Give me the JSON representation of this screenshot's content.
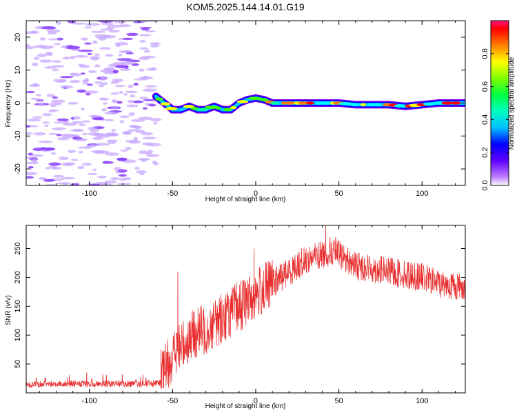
{
  "title": "KOM5.2025.144.14.01.G19",
  "chart_data": [
    {
      "type": "heatmap",
      "name": "spectrogram",
      "xlabel": "Height of straight line (km)",
      "ylabel": "Frequency (Hz)",
      "xlim": [
        -138,
        126
      ],
      "ylim": [
        -25,
        25
      ],
      "xticks": [
        -100,
        -50,
        0,
        50,
        100
      ],
      "yticks": [
        -20,
        -10,
        0,
        10,
        20
      ],
      "track": {
        "x": [
          -60,
          -55,
          -50,
          -45,
          -40,
          -35,
          -30,
          -25,
          -20,
          -15,
          -10,
          -5,
          0,
          5,
          10,
          15,
          20,
          30,
          40,
          50,
          60,
          70,
          80,
          90,
          100,
          110,
          120,
          126
        ],
        "freq": [
          2,
          0,
          -2,
          -2,
          -1,
          -2,
          -2,
          -1,
          -2,
          -2,
          0,
          1,
          1.5,
          1,
          0,
          0,
          0,
          0,
          0,
          0,
          -0.5,
          -0.5,
          -0.5,
          -1,
          -0.5,
          0,
          0,
          0
        ]
      },
      "noise_region_x": [
        -138,
        -60
      ],
      "colorbar": {
        "label": "Normalized spectral amplitude",
        "ticks": [
          0.0,
          0.2,
          0.4,
          0.6,
          0.8
        ],
        "tick_labels": [
          "0.0",
          "0.2",
          "0.4",
          "0.6",
          "0.8"
        ],
        "range": [
          0,
          1
        ],
        "colormap": "hsv-rainbow"
      }
    },
    {
      "type": "line",
      "name": "snr",
      "xlabel": "Height of straight line (km)",
      "ylabel": "SNR (v/v)",
      "xlim": [
        -138,
        126
      ],
      "ylim": [
        0,
        290
      ],
      "xticks": [
        -100,
        -50,
        0,
        50,
        100
      ],
      "yticks": [
        50,
        100,
        150,
        200,
        250
      ],
      "color": "#e83030",
      "series": [
        {
          "x": [
            -138,
            -120,
            -100,
            -80,
            -60,
            -57,
            -55,
            -50,
            -45,
            -40,
            -35,
            -30,
            -25,
            -20,
            -15,
            -10,
            -5,
            0,
            5,
            10,
            15,
            20,
            25,
            30,
            35,
            40,
            45,
            50,
            55,
            60,
            70,
            80,
            90,
            100,
            110,
            120,
            126
          ],
          "values": [
            15,
            16,
            15,
            16,
            16,
            17,
            40,
            65,
            80,
            95,
            105,
            110,
            120,
            130,
            140,
            150,
            160,
            170,
            180,
            190,
            200,
            210,
            220,
            230,
            235,
            240,
            245,
            240,
            230,
            220,
            215,
            210,
            205,
            200,
            190,
            185,
            185
          ]
        }
      ],
      "spikes": [
        {
          "x": -57,
          "value": 75
        },
        {
          "x": -47,
          "value": 210
        },
        {
          "x": -1,
          "value": 250
        },
        {
          "x": 42,
          "value": 290
        },
        {
          "x": 48,
          "value": 270
        }
      ]
    }
  ]
}
